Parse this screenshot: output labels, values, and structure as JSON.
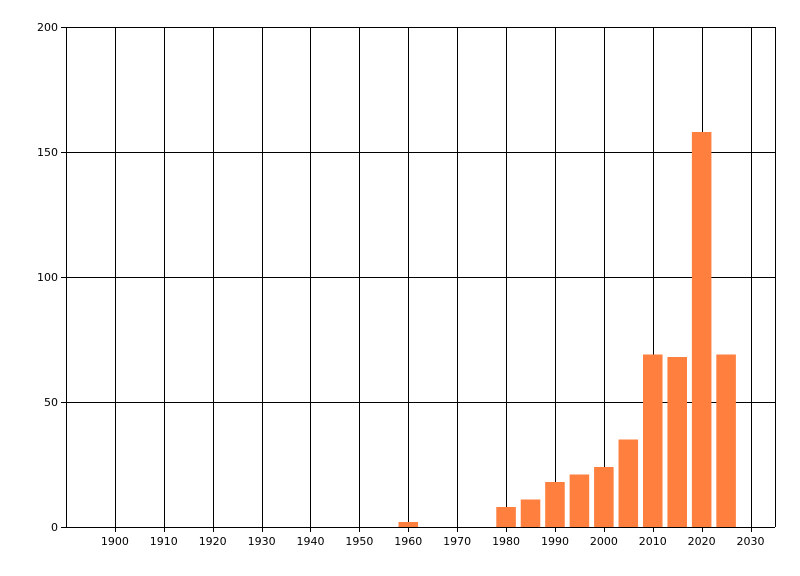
{
  "chart_data": {
    "type": "bar",
    "title": "",
    "xlabel": "",
    "ylabel": "",
    "x": [
      1960,
      1980,
      1985,
      1990,
      1995,
      2000,
      2005,
      2010,
      2015,
      2020,
      2025
    ],
    "values": [
      2,
      8,
      11,
      18,
      21,
      24,
      35,
      69,
      68,
      158,
      69
    ],
    "bar_width_years": 4,
    "xlim": [
      1890,
      2035
    ],
    "ylim": [
      0,
      200
    ],
    "x_ticks": [
      1900,
      1910,
      1920,
      1930,
      1940,
      1950,
      1960,
      1970,
      1980,
      1990,
      2000,
      2010,
      2020,
      2030
    ],
    "x_tick_labels": [
      "1900",
      "1910",
      "1920",
      "1930",
      "1940",
      "1950",
      "1960",
      "1970",
      "1980",
      "1990",
      "2000",
      "2010",
      "2020",
      "2030"
    ],
    "y_ticks": [
      0,
      50,
      100,
      150,
      200
    ],
    "y_tick_labels": [
      "0",
      "50",
      "100",
      "150",
      "200"
    ],
    "grid": true,
    "legend": "none",
    "bar_color": "#ff7f3f",
    "grid_color": "#000000"
  }
}
